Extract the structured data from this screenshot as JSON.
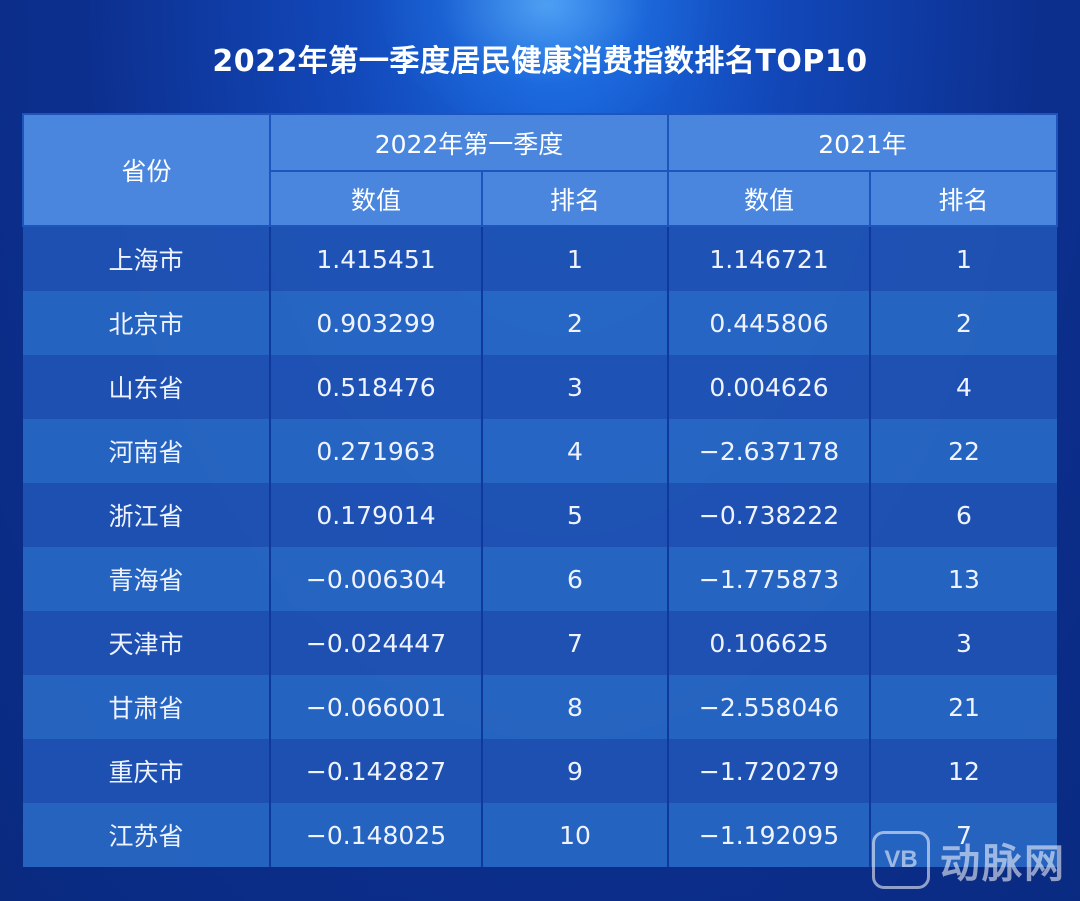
{
  "chart_data": {
    "type": "table",
    "title": "2022年第一季度居民健康消费指数排名TOP10",
    "header": {
      "province": "省份",
      "group_2022q1": "2022年第一季度",
      "group_2021": "2021年",
      "value": "数值",
      "rank": "排名"
    },
    "rows": [
      {
        "province": "上海市",
        "q1_2022_value": "1.415451",
        "q1_2022_rank": "1",
        "y2021_value": "1.146721",
        "y2021_rank": "1"
      },
      {
        "province": "北京市",
        "q1_2022_value": "0.903299",
        "q1_2022_rank": "2",
        "y2021_value": "0.445806",
        "y2021_rank": "2"
      },
      {
        "province": "山东省",
        "q1_2022_value": "0.518476",
        "q1_2022_rank": "3",
        "y2021_value": "0.004626",
        "y2021_rank": "4"
      },
      {
        "province": "河南省",
        "q1_2022_value": "0.271963",
        "q1_2022_rank": "4",
        "y2021_value": "−2.637178",
        "y2021_rank": "22"
      },
      {
        "province": "浙江省",
        "q1_2022_value": "0.179014",
        "q1_2022_rank": "5",
        "y2021_value": "−0.738222",
        "y2021_rank": "6"
      },
      {
        "province": "青海省",
        "q1_2022_value": "−0.006304",
        "q1_2022_rank": "6",
        "y2021_value": "−1.775873",
        "y2021_rank": "13"
      },
      {
        "province": "天津市",
        "q1_2022_value": "−0.024447",
        "q1_2022_rank": "7",
        "y2021_value": "0.106625",
        "y2021_rank": "3"
      },
      {
        "province": "甘肃省",
        "q1_2022_value": "−0.066001",
        "q1_2022_rank": "8",
        "y2021_value": "−2.558046",
        "y2021_rank": "21"
      },
      {
        "province": "重庆市",
        "q1_2022_value": "−0.142827",
        "q1_2022_rank": "9",
        "y2021_value": "−1.720279",
        "y2021_rank": "12"
      },
      {
        "province": "江苏省",
        "q1_2022_value": "−0.148025",
        "q1_2022_rank": "10",
        "y2021_value": "−1.192095",
        "y2021_rank": "7"
      }
    ]
  },
  "watermark": {
    "logo_text": "VB",
    "text": "动脉网"
  },
  "colors": {
    "background": "#0c2f8e",
    "header_fill": "#4a86de",
    "row_odd": "#1f54b4",
    "row_even": "#2868c4",
    "text": "#ffffff"
  }
}
